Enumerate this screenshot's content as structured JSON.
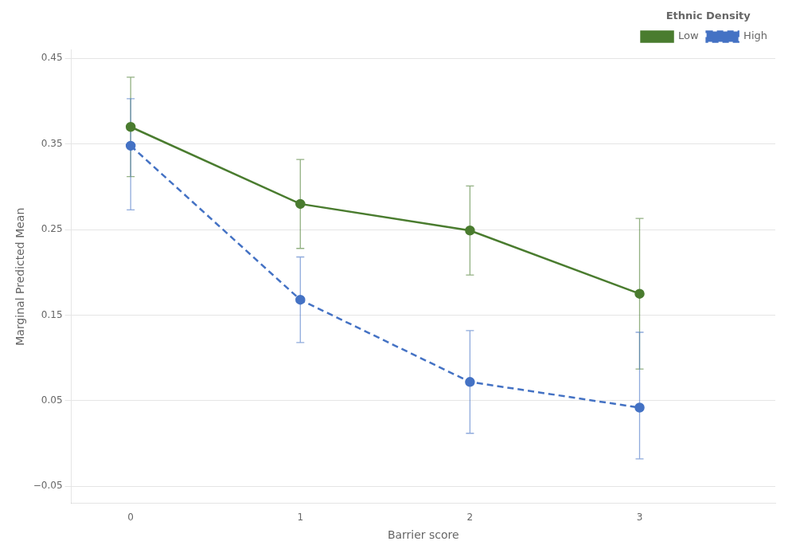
{
  "chart_data": {
    "type": "line",
    "x_label": "Barrier score",
    "y_label": "Marginal Predicted Mean",
    "legend_title": "Ethnic Density",
    "x": [
      0,
      1,
      2,
      3
    ],
    "series": [
      {
        "name": "Low",
        "color": "#4a7c2f",
        "line_style": "solid",
        "marker": "circle",
        "values": [
          0.37,
          0.28,
          0.249,
          0.175
        ],
        "yerr_lower": [
          0.058,
          0.052,
          0.052,
          0.088
        ],
        "yerr_upper": [
          0.058,
          0.052,
          0.052,
          0.088
        ]
      },
      {
        "name": "High",
        "color": "#4472c4",
        "line_style": "dashed",
        "marker": "circle",
        "values": [
          0.348,
          0.168,
          0.072,
          0.042
        ],
        "yerr_lower": [
          0.075,
          0.05,
          0.06,
          0.06
        ],
        "yerr_upper": [
          0.055,
          0.05,
          0.06,
          0.088
        ]
      }
    ],
    "xlim": [
      -0.35,
      3.8
    ],
    "xticks": [
      0,
      1,
      2,
      3
    ],
    "ylim": [
      -0.07,
      0.46
    ],
    "yticks": [
      {
        "value": -0.05,
        "label": "−0.05"
      },
      0.05,
      0.15,
      0.25,
      0.35,
      0.45
    ],
    "grid": "y",
    "legend": "upper right"
  }
}
